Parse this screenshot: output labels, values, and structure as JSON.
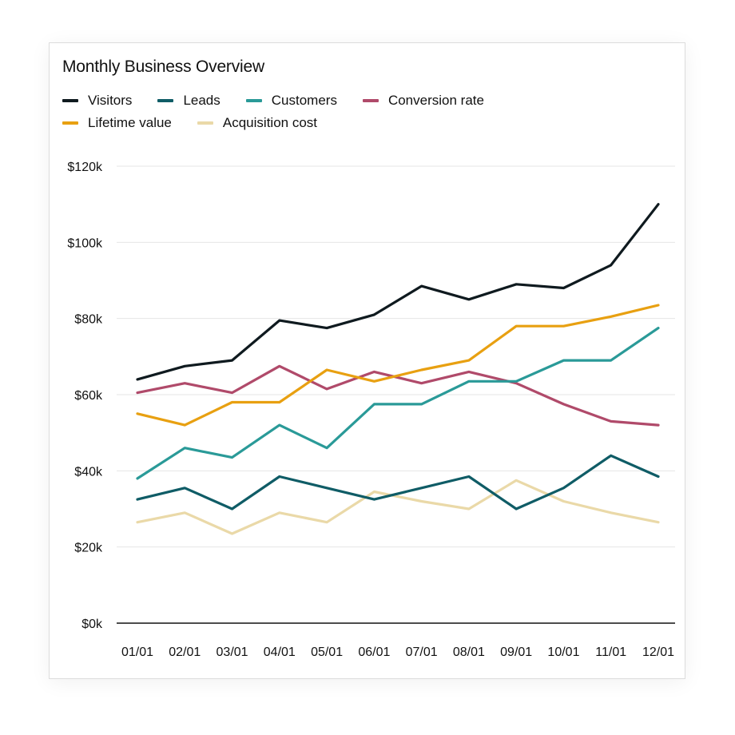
{
  "chart_data": {
    "type": "line",
    "title": "Monthly Business Overview",
    "xlabel": "",
    "ylabel": "",
    "x": [
      "01/01",
      "02/01",
      "03/01",
      "04/01",
      "05/01",
      "06/01",
      "07/01",
      "08/01",
      "09/01",
      "10/01",
      "11/01",
      "12/01"
    ],
    "ylim": [
      0,
      120000
    ],
    "yticks": [
      0,
      20000,
      40000,
      60000,
      80000,
      100000,
      120000
    ],
    "ytick_labels": [
      "$0k",
      "$20k",
      "$40k",
      "$60k",
      "$80k",
      "$100k",
      "$120k"
    ],
    "grid": true,
    "legend_position": "top-left",
    "series": [
      {
        "name": "Visitors",
        "color": "#0f1a1f",
        "values": [
          64000,
          67500,
          69000,
          79500,
          77500,
          81000,
          88500,
          85000,
          89000,
          88000,
          94000,
          110000
        ]
      },
      {
        "name": "Leads",
        "color": "#0f5c66",
        "values": [
          32500,
          35500,
          30000,
          38500,
          35500,
          32500,
          35500,
          38500,
          30000,
          35500,
          44000,
          38500
        ]
      },
      {
        "name": "Customers",
        "color": "#2a9a98",
        "values": [
          38000,
          46000,
          43500,
          52000,
          46000,
          57500,
          57500,
          63500,
          63500,
          69000,
          69000,
          77500
        ]
      },
      {
        "name": "Conversion rate",
        "color": "#b04a6a",
        "values": [
          60500,
          63000,
          60500,
          67500,
          61500,
          66000,
          63000,
          66000,
          63000,
          57500,
          53000,
          52000
        ]
      },
      {
        "name": "Lifetime value",
        "color": "#e8a011",
        "values": [
          55000,
          52000,
          58000,
          58000,
          66500,
          63500,
          66500,
          69000,
          78000,
          78000,
          80500,
          83500
        ]
      },
      {
        "name": "Acquisition cost",
        "color": "#ead9a8",
        "values": [
          26500,
          29000,
          23500,
          29000,
          26500,
          34500,
          32000,
          30000,
          37500,
          32000,
          29000,
          26500
        ]
      }
    ]
  }
}
